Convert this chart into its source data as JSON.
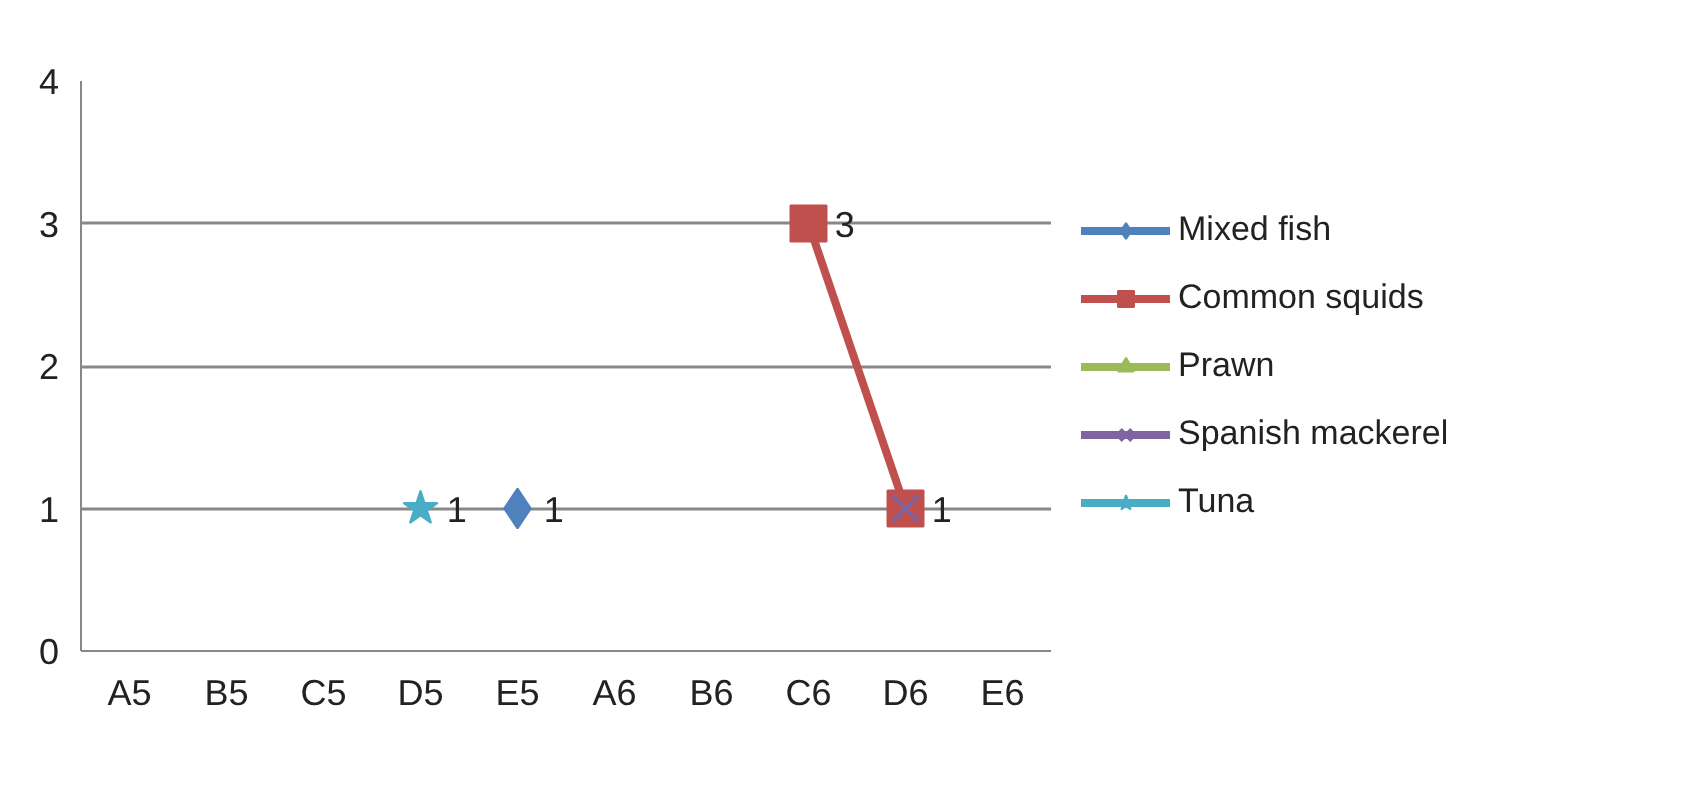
{
  "chart_data": {
    "type": "line",
    "categories": [
      "A5",
      "B5",
      "C5",
      "D5",
      "E5",
      "A6",
      "B6",
      "C6",
      "D6",
      "E6"
    ],
    "ylim": [
      0,
      4
    ],
    "yticks": [
      0,
      1,
      2,
      3,
      4
    ],
    "grid": "y",
    "legend": "right",
    "data_labels": true,
    "series": [
      {
        "name": "Mixed fish",
        "color": "#4f81bd",
        "marker": "diamond",
        "values": [
          null,
          null,
          null,
          null,
          1,
          null,
          null,
          null,
          null,
          null
        ]
      },
      {
        "name": "Common squids",
        "color": "#c0504d",
        "marker": "square",
        "values": [
          null,
          null,
          null,
          null,
          null,
          null,
          null,
          3,
          1,
          null
        ]
      },
      {
        "name": "Prawn",
        "color": "#9bbb59",
        "marker": "triangle",
        "values": [
          null,
          null,
          null,
          null,
          null,
          null,
          null,
          null,
          null,
          null
        ]
      },
      {
        "name": "Spanish mackerel",
        "color": "#8064a2",
        "marker": "cross",
        "values": [
          null,
          null,
          null,
          null,
          null,
          null,
          null,
          null,
          1,
          null
        ],
        "value_labels": [
          null,
          null,
          null,
          null,
          null,
          null,
          null,
          null,
          null,
          null
        ]
      },
      {
        "name": "Tuna",
        "color": "#4bacc6",
        "marker": "star",
        "values": [
          null,
          null,
          null,
          1,
          null,
          null,
          null,
          null,
          null,
          null
        ]
      }
    ]
  }
}
